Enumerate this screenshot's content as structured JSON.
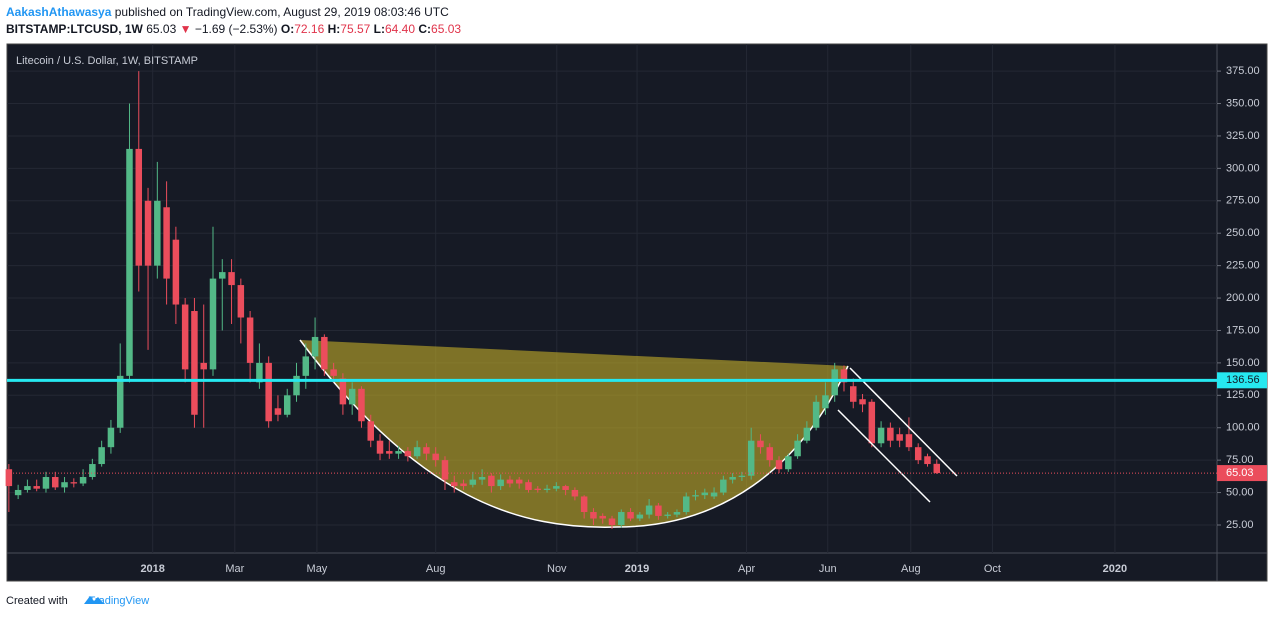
{
  "header": {
    "author": "AakashAthawasya",
    "published": "published on TradingView.com, August 29, 2019 08:03:46 UTC",
    "symbol": "BITSTAMP:LTCUSD, 1W",
    "last": "65.03",
    "arrow": "▼",
    "change": "−1.69 (−2.53%)",
    "ohlc": [
      {
        "k": "O:",
        "v": "72.16"
      },
      {
        "k": "H:",
        "v": "75.57"
      },
      {
        "k": "L:",
        "v": "64.40"
      },
      {
        "k": "C:",
        "v": "65.03"
      }
    ]
  },
  "footer": {
    "prefix": "Created with",
    "brand": "TradingView"
  },
  "chart_data": {
    "type": "candlestick",
    "title": "Litecoin / U.S. Dollar, 1W, BITSTAMP",
    "categories": [
      null,
      null,
      null,
      null,
      null,
      null,
      null,
      null,
      null,
      null,
      null,
      null,
      null,
      null,
      null,
      null,
      null,
      null,
      null,
      null,
      null,
      null,
      null,
      null,
      null,
      null,
      null,
      null,
      null,
      null,
      null,
      null,
      null,
      null,
      null,
      null,
      null,
      null,
      null,
      null,
      null,
      null,
      null,
      null,
      null,
      null,
      null,
      null,
      null,
      null,
      null,
      null,
      null,
      null,
      null,
      null,
      null,
      null,
      null,
      null,
      null,
      null,
      null,
      null,
      null,
      null,
      null,
      null,
      null,
      null,
      null,
      null,
      null,
      null,
      null,
      null,
      null,
      null,
      null,
      null,
      null,
      null,
      null,
      null,
      null,
      null,
      null,
      null,
      null,
      null,
      null,
      null,
      null,
      null,
      null,
      null,
      null,
      null,
      null,
      null,
      null
    ],
    "open": [
      68,
      48,
      52,
      55,
      53,
      62,
      54,
      58,
      57,
      62,
      72,
      85,
      100,
      140,
      315,
      275,
      225,
      270,
      245,
      195,
      190,
      150,
      145,
      215,
      220,
      210,
      185,
      135,
      150,
      115,
      110,
      125,
      140,
      155,
      170,
      145,
      138,
      118,
      130,
      105,
      90,
      82,
      80,
      82,
      78,
      85,
      80,
      75,
      58,
      57,
      56,
      60,
      63,
      55,
      60,
      60,
      58,
      53,
      52,
      53,
      55,
      52,
      47,
      35,
      32,
      30,
      25,
      35,
      30,
      33,
      40,
      32,
      33,
      35,
      47,
      48,
      47,
      50,
      60,
      62,
      63,
      90,
      85,
      75,
      68,
      78,
      90,
      100,
      115,
      125,
      145,
      132,
      122,
      120,
      88,
      100,
      95,
      95,
      85,
      78,
      72.16
    ],
    "high": [
      72,
      56,
      60,
      60,
      66,
      66,
      62,
      61,
      68,
      76,
      90,
      106,
      165,
      350,
      375,
      285,
      305,
      290,
      255,
      200,
      200,
      195,
      255,
      230,
      230,
      215,
      190,
      165,
      155,
      125,
      130,
      150,
      165,
      185,
      172,
      150,
      142,
      135,
      132,
      110,
      95,
      90,
      86,
      85,
      90,
      88,
      85,
      78,
      63,
      60,
      66,
      68,
      65,
      64,
      63,
      62,
      60,
      55,
      56,
      58,
      56,
      54,
      48,
      38,
      34,
      32,
      37,
      38,
      35,
      45,
      42,
      35,
      37,
      50,
      52,
      53,
      54,
      63,
      65,
      66,
      100,
      95,
      88,
      78,
      80,
      95,
      105,
      125,
      135,
      150,
      148,
      138,
      126,
      122,
      105,
      104,
      100,
      108,
      88,
      80,
      75.57
    ],
    "low": [
      35,
      45,
      50,
      51,
      50,
      52,
      50,
      54,
      55,
      60,
      70,
      80,
      96,
      135,
      205,
      160,
      215,
      195,
      180,
      135,
      100,
      100,
      140,
      175,
      180,
      165,
      135,
      130,
      100,
      105,
      108,
      120,
      130,
      145,
      140,
      135,
      110,
      110,
      100,
      85,
      75,
      76,
      76,
      74,
      76,
      75,
      70,
      52,
      50,
      52,
      54,
      56,
      50,
      52,
      54,
      53,
      50,
      50,
      50,
      51,
      48,
      44,
      30,
      25,
      26,
      22,
      23,
      28,
      28,
      30,
      29,
      30,
      31,
      33,
      44,
      45,
      45,
      48,
      57,
      59,
      60,
      80,
      70,
      65,
      66,
      76,
      88,
      98,
      110,
      120,
      128,
      115,
      112,
      85,
      85,
      85,
      85,
      82,
      72,
      70,
      64.4
    ],
    "close": [
      55,
      52,
      55,
      53,
      62,
      54,
      58,
      57,
      62,
      72,
      85,
      100,
      140,
      315,
      225,
      225,
      275,
      215,
      195,
      145,
      110,
      145,
      215,
      220,
      210,
      185,
      150,
      150,
      105,
      110,
      125,
      140,
      155,
      170,
      145,
      140,
      118,
      130,
      105,
      90,
      80,
      80,
      82,
      78,
      85,
      80,
      75,
      60,
      55,
      55,
      60,
      62,
      55,
      60,
      57,
      57,
      52,
      52,
      53,
      55,
      52,
      47,
      35,
      30,
      30,
      25,
      35,
      30,
      33,
      40,
      32,
      33,
      35,
      47,
      48,
      50,
      50,
      60,
      62,
      63,
      90,
      85,
      75,
      68,
      78,
      90,
      100,
      120,
      125,
      145,
      135,
      120,
      118,
      88,
      100,
      90,
      90,
      85,
      75,
      72,
      65.03
    ],
    "up_color": "#53b987",
    "down_color": "#eb4d5c",
    "ylim": [
      3.4,
      395.9
    ],
    "yticks": [
      {
        "value": 25,
        "label": "25.00"
      },
      {
        "value": 50,
        "label": "50.00"
      },
      {
        "value": 75,
        "label": "75.00"
      },
      {
        "value": 100,
        "label": "100.00"
      },
      {
        "value": 125,
        "label": "125.00"
      },
      {
        "value": 150,
        "label": "150.00"
      },
      {
        "value": 175,
        "label": "175.00"
      },
      {
        "value": 200,
        "label": "200.00"
      },
      {
        "value": 225,
        "label": "225.00"
      },
      {
        "value": 250,
        "label": "250.00"
      },
      {
        "value": 275,
        "label": "275.00"
      },
      {
        "value": 300,
        "label": "300.00"
      },
      {
        "value": 325,
        "label": "325.00"
      },
      {
        "value": 350,
        "label": "350.00"
      },
      {
        "value": 375,
        "label": "375.00"
      }
    ],
    "xlim": [
      -0.2,
      130.2
    ],
    "xticks": [
      {
        "value": 15.5,
        "label": "2018"
      },
      {
        "value": 24.35,
        "label": "Mar"
      },
      {
        "value": 33.2,
        "label": "May"
      },
      {
        "value": 46.0,
        "label": "Aug"
      },
      {
        "value": 59.05,
        "label": "Nov"
      },
      {
        "value": 67.7,
        "label": "2019"
      },
      {
        "value": 79.5,
        "label": "Apr"
      },
      {
        "value": 88.25,
        "label": "Jun"
      },
      {
        "value": 97.2,
        "label": "Aug"
      },
      {
        "value": 106.0,
        "label": "Oct"
      },
      {
        "value": 119.2,
        "label": "2020"
      }
    ],
    "grid": true,
    "hline": {
      "value": 136.56,
      "color": "#26e8f0"
    },
    "last_price": 65.03
  }
}
